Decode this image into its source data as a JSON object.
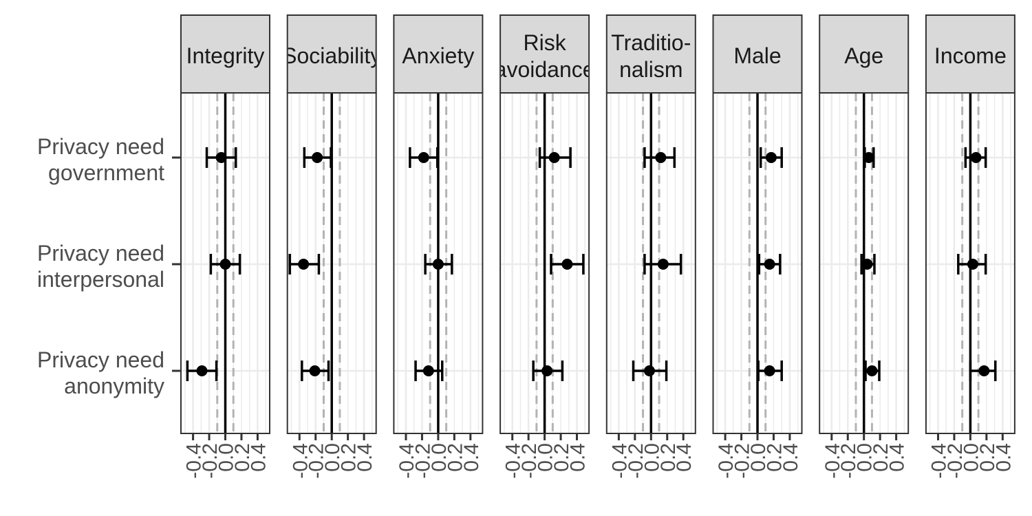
{
  "chart_data": {
    "type": "scatter",
    "subtype": "faceted coefficient plot with error bars",
    "facets": [
      "Integrity",
      "Sociability",
      "Anxiety",
      "Risk avoidance",
      "Traditio- nalism",
      "Male",
      "Age",
      "Income"
    ],
    "rows": [
      "Privacy need government",
      "Privacy need interpersonal",
      "Privacy need anonymity"
    ],
    "x_ticks": [
      -0.4,
      -0.2,
      0.0,
      0.2,
      0.4
    ],
    "x_tick_labels": [
      "-0.4",
      "-0.2",
      "0.0",
      "0.2",
      "0.4"
    ],
    "xlim": [
      -0.55,
      0.55
    ],
    "reference_lines": {
      "solid": 0.0,
      "dashed": [
        -0.1,
        0.1
      ]
    },
    "grid": true,
    "series": [
      {
        "facet": "Integrity",
        "estimates": [
          -0.05,
          0.0,
          -0.29
        ],
        "lower": [
          -0.23,
          -0.18,
          -0.47
        ],
        "upper": [
          0.13,
          0.18,
          -0.11
        ]
      },
      {
        "facet": "Sociability",
        "estimates": [
          -0.18,
          -0.35,
          -0.21
        ],
        "lower": [
          -0.34,
          -0.52,
          -0.37
        ],
        "upper": [
          -0.01,
          -0.16,
          -0.04
        ]
      },
      {
        "facet": "Anxiety",
        "estimates": [
          -0.18,
          0.0,
          -0.12
        ],
        "lower": [
          -0.35,
          -0.16,
          -0.28
        ],
        "upper": [
          -0.01,
          0.17,
          0.05
        ]
      },
      {
        "facet": "Risk avoidance",
        "estimates": [
          0.12,
          0.28,
          0.03
        ],
        "lower": [
          -0.06,
          0.08,
          -0.14
        ],
        "upper": [
          0.32,
          0.48,
          0.22
        ]
      },
      {
        "facet": "Traditio- nalism",
        "estimates": [
          0.12,
          0.15,
          -0.02
        ],
        "lower": [
          -0.08,
          -0.08,
          -0.22
        ],
        "upper": [
          0.29,
          0.37,
          0.19
        ]
      },
      {
        "facet": "Male",
        "estimates": [
          0.17,
          0.15,
          0.15
        ],
        "lower": [
          0.04,
          0.02,
          0.01
        ],
        "upper": [
          0.3,
          0.28,
          0.3
        ]
      },
      {
        "facet": "Age",
        "estimates": [
          0.06,
          0.04,
          0.1
        ],
        "lower": [
          0.01,
          -0.03,
          0.02
        ],
        "upper": [
          0.12,
          0.13,
          0.19
        ]
      },
      {
        "facet": "Income",
        "estimates": [
          0.07,
          0.03,
          0.17
        ],
        "lower": [
          -0.06,
          -0.15,
          0.0
        ],
        "upper": [
          0.19,
          0.19,
          0.31
        ]
      }
    ],
    "colors": {
      "strip_fill": "#d9d9d9",
      "panel_border": "#333333",
      "grid": "#ebebeb",
      "reference_solid": "#000000",
      "reference_dashed": "#b3b3b3",
      "points": "#000000",
      "label_text": "#4d4d4d"
    }
  }
}
